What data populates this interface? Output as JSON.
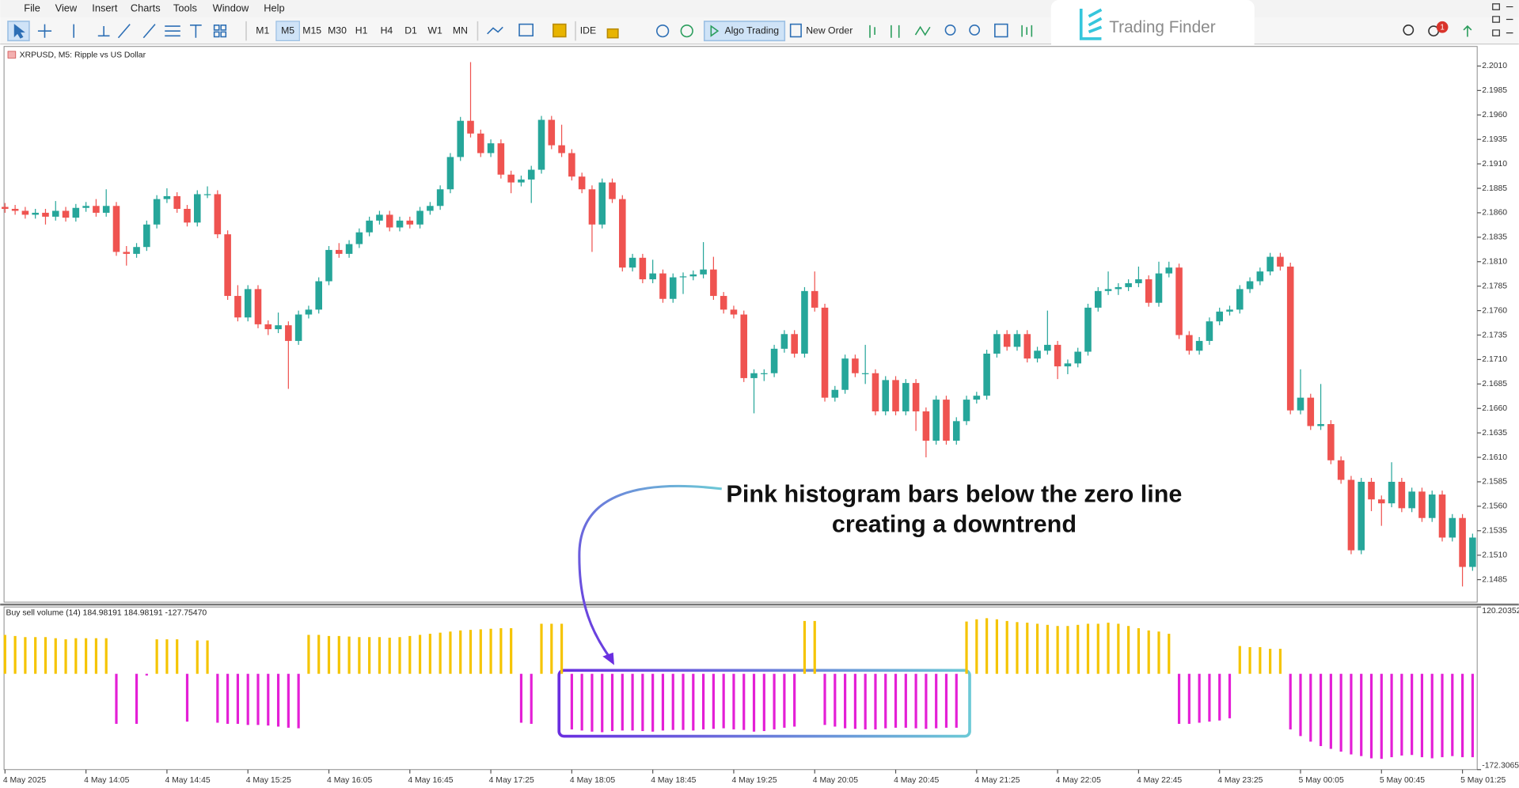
{
  "menu": [
    "File",
    "View",
    "Insert",
    "Charts",
    "Tools",
    "Window",
    "Help"
  ],
  "toolbar": {
    "timeframes": [
      "M1",
      "M5",
      "M15",
      "M30",
      "H1",
      "H4",
      "D1",
      "W1",
      "MN"
    ],
    "ide": "IDE",
    "algo": "Algo Trading",
    "new_order": "New Order"
  },
  "logo": "Trading Finder",
  "notifications": 1,
  "chart_data": [
    {
      "type": "candlestick",
      "title": "XRPUSD, M5:  Ripple vs US Dollar",
      "categories": [
        "4 May 2025",
        null,
        null,
        null,
        null,
        null,
        null,
        null,
        "4 May 14:05",
        null,
        null,
        null,
        null,
        null,
        null,
        null,
        "4 May 14:45",
        null,
        null,
        null,
        null,
        null,
        null,
        null,
        "4 May 15:25",
        null,
        null,
        null,
        null,
        null,
        null,
        null,
        "4 May 16:05",
        null,
        null,
        null,
        null,
        null,
        null,
        null,
        "4 May 16:45",
        null,
        null,
        null,
        null,
        null,
        null,
        null,
        "4 May 17:25",
        null,
        null,
        null,
        null,
        null,
        null,
        null,
        "4 May 18:05",
        null,
        null,
        null,
        null,
        null,
        null,
        null,
        "4 May 18:45",
        null,
        null,
        null,
        null,
        null,
        null,
        null,
        "4 May 19:25",
        null,
        null,
        null,
        null,
        null,
        null,
        null,
        "4 May 20:05",
        null,
        null,
        null,
        null,
        null,
        null,
        null,
        "4 May 20:45",
        null,
        null,
        null,
        null,
        null,
        null,
        null,
        "4 May 21:25",
        null,
        null,
        null,
        null,
        null,
        null,
        null,
        "4 May 22:05",
        null,
        null,
        null,
        null,
        null,
        null,
        null,
        "4 May 22:45",
        null,
        null,
        null,
        null,
        null,
        null,
        null,
        "4 May 23:25",
        null,
        null,
        null,
        null,
        null,
        null,
        null,
        "5 May 00:05",
        null,
        null,
        null,
        null,
        null,
        null,
        null,
        "5 May 00:45",
        null,
        null,
        null,
        null,
        null,
        null,
        null,
        "5 May 01:25",
        null
      ],
      "open": [
        2.1866,
        2.1864,
        2.1862,
        2.1858,
        2.186,
        2.1856,
        2.1862,
        2.1855,
        2.1865,
        2.1867,
        2.186,
        2.1867,
        2.182,
        2.1818,
        2.1825,
        2.1848,
        2.1874,
        2.1877,
        2.1864,
        2.185,
        2.1879,
        2.1879,
        2.1838,
        2.1775,
        2.1753,
        2.1782,
        2.1746,
        2.1741,
        2.1745,
        2.1729,
        2.1756,
        2.1761,
        2.179,
        2.1822,
        2.1818,
        2.1828,
        2.184,
        2.1852,
        2.1858,
        2.1845,
        2.1852,
        2.1848,
        2.1862,
        2.1867,
        2.1884,
        2.1917,
        2.1954,
        2.1941,
        2.1921,
        2.1931,
        2.1899,
        2.1891,
        2.1894,
        2.1904,
        2.1955,
        2.1929,
        2.1921,
        2.1897,
        2.1884,
        2.1848,
        2.1891,
        2.1874,
        2.1804,
        2.1814,
        2.1792,
        2.1798,
        2.1772,
        2.1794,
        2.1795,
        2.1797,
        2.1802,
        2.1775,
        2.1761,
        2.1756,
        2.1691,
        2.1696,
        2.1696,
        2.1721,
        2.1736,
        2.1716,
        2.178,
        2.1763,
        2.1671,
        2.1679,
        2.1711,
        2.1696,
        2.1696,
        2.1657,
        2.1689,
        2.1657,
        2.1686,
        2.1657,
        2.1627,
        2.1669,
        2.1627,
        2.1647,
        2.1669,
        2.1673,
        2.1716,
        2.1736,
        2.1723,
        2.1736,
        2.1711,
        2.1719,
        2.1725,
        2.1703,
        2.1706,
        2.1718,
        2.1763,
        2.178,
        2.1782,
        2.1784,
        2.1788,
        2.1792,
        2.1768,
        2.1798,
        2.1804,
        2.1735,
        2.1719,
        2.1729,
        2.1749,
        2.1759,
        2.1761,
        2.1782,
        2.179,
        2.18,
        2.1815,
        2.1805,
        2.1658,
        2.1671,
        2.1642,
        2.1644,
        2.1607,
        2.1587,
        2.1515,
        2.1585,
        2.1567,
        2.1563,
        2.1585,
        2.1558,
        2.1575,
        2.1548,
        2.1572,
        2.1528,
        2.1548,
        2.1498
      ],
      "high": [
        2.187,
        2.1868,
        2.1866,
        2.1864,
        2.1864,
        2.1872,
        2.1866,
        2.1869,
        2.1871,
        2.1874,
        2.1884,
        2.1871,
        2.1826,
        2.1829,
        2.1852,
        2.1878,
        2.1885,
        2.1881,
        2.1868,
        2.1883,
        2.1887,
        2.1883,
        2.1842,
        2.1786,
        2.1786,
        2.1786,
        2.175,
        2.1758,
        2.1749,
        2.176,
        2.1765,
        2.1794,
        2.1826,
        2.1829,
        2.1832,
        2.1844,
        2.1856,
        2.1862,
        2.1862,
        2.1856,
        2.1856,
        2.1866,
        2.1871,
        2.1888,
        2.1921,
        2.1958,
        2.2014,
        2.1945,
        2.1935,
        2.1935,
        2.1903,
        2.1898,
        2.1908,
        2.1959,
        2.1959,
        2.195,
        2.1925,
        2.1901,
        2.1888,
        2.1895,
        2.1895,
        2.1878,
        2.1818,
        2.1818,
        2.1812,
        2.1802,
        2.1798,
        2.1799,
        2.1801,
        2.183,
        2.1815,
        2.1779,
        2.1765,
        2.176,
        2.17,
        2.17,
        2.1725,
        2.174,
        2.174,
        2.1784,
        2.18,
        2.1767,
        2.1683,
        2.1715,
        2.1715,
        2.1725,
        2.17,
        2.1693,
        2.1693,
        2.169,
        2.169,
        2.1661,
        2.1673,
        2.1673,
        2.1651,
        2.1673,
        2.1677,
        2.172,
        2.174,
        2.174,
        2.174,
        2.174,
        2.1723,
        2.176,
        2.1729,
        2.171,
        2.1722,
        2.1767,
        2.1784,
        2.18,
        2.1788,
        2.1792,
        2.1805,
        2.1796,
        2.181,
        2.181,
        2.1808,
        2.1739,
        2.1733,
        2.1753,
        2.1763,
        2.1765,
        2.1786,
        2.1794,
        2.1804,
        2.1819,
        2.1819,
        2.1809,
        2.17,
        2.1675,
        2.1685,
        2.1648,
        2.1611,
        2.1591,
        2.1589,
        2.1589,
        2.1571,
        2.1605,
        2.1589,
        2.1579,
        2.1579,
        2.1576,
        2.1576,
        2.1552,
        2.1552,
        2.1532
      ],
      "low": [
        2.186,
        2.1858,
        2.1854,
        2.1854,
        2.1848,
        2.1852,
        2.1851,
        2.1851,
        2.1861,
        2.1856,
        2.1856,
        2.1816,
        2.1806,
        2.1814,
        2.1821,
        2.1844,
        2.187,
        2.186,
        2.1846,
        2.1846,
        2.1875,
        2.1834,
        2.1771,
        2.1749,
        2.1749,
        2.1742,
        2.1735,
        2.1737,
        2.168,
        2.1725,
        2.1752,
        2.1757,
        2.1786,
        2.1814,
        2.1814,
        2.1824,
        2.1836,
        2.1848,
        2.1841,
        2.1841,
        2.1844,
        2.1844,
        2.1858,
        2.1863,
        2.188,
        2.1913,
        2.1937,
        2.1917,
        2.1917,
        2.1895,
        2.188,
        2.1887,
        2.187,
        2.19,
        2.1925,
        2.1917,
        2.1893,
        2.188,
        2.182,
        2.1844,
        2.187,
        2.18,
        2.18,
        2.1788,
        2.1788,
        2.1768,
        2.1768,
        2.1777,
        2.1791,
        2.1793,
        2.1771,
        2.1757,
        2.1752,
        2.1687,
        2.1655,
        2.1688,
        2.1692,
        2.1717,
        2.1712,
        2.1712,
        2.1759,
        2.1667,
        2.1667,
        2.1675,
        2.1692,
        2.1685,
        2.1653,
        2.1653,
        2.1653,
        2.1653,
        2.1637,
        2.161,
        2.1623,
        2.1623,
        2.1623,
        2.1643,
        2.1665,
        2.1669,
        2.1712,
        2.1719,
        2.1719,
        2.1707,
        2.1707,
        2.1715,
        2.169,
        2.1695,
        2.1702,
        2.1714,
        2.1759,
        2.1776,
        2.1776,
        2.178,
        2.1784,
        2.1764,
        2.1764,
        2.1794,
        2.1731,
        2.1715,
        2.1715,
        2.1725,
        2.1745,
        2.1755,
        2.1757,
        2.1778,
        2.1786,
        2.1796,
        2.1801,
        2.1654,
        2.1654,
        2.1638,
        2.1638,
        2.1603,
        2.1583,
        2.1511,
        2.1511,
        2.1555,
        2.154,
        2.1559,
        2.1554,
        2.1554,
        2.1544,
        2.1544,
        2.1524,
        2.1524,
        2.1478,
        2.1494
      ],
      "close": [
        2.1864,
        2.1862,
        2.1858,
        2.186,
        2.1856,
        2.1862,
        2.1855,
        2.1865,
        2.1867,
        2.186,
        2.1867,
        2.182,
        2.1818,
        2.1825,
        2.1848,
        2.1874,
        2.1877,
        2.1864,
        2.185,
        2.1879,
        2.1879,
        2.1838,
        2.1775,
        2.1753,
        2.1782,
        2.1746,
        2.1741,
        2.1745,
        2.1729,
        2.1756,
        2.1761,
        2.179,
        2.1822,
        2.1818,
        2.1828,
        2.184,
        2.1852,
        2.1858,
        2.1845,
        2.1852,
        2.1848,
        2.1862,
        2.1867,
        2.1884,
        2.1917,
        2.1954,
        2.1941,
        2.1921,
        2.1931,
        2.1899,
        2.1891,
        2.1894,
        2.1904,
        2.1955,
        2.1929,
        2.1921,
        2.1897,
        2.1884,
        2.1848,
        2.1891,
        2.1874,
        2.1804,
        2.1814,
        2.1792,
        2.1798,
        2.1772,
        2.1794,
        2.1795,
        2.1797,
        2.1802,
        2.1775,
        2.1761,
        2.1756,
        2.1691,
        2.1696,
        2.1696,
        2.1721,
        2.1736,
        2.1716,
        2.178,
        2.1763,
        2.1671,
        2.1679,
        2.1711,
        2.1696,
        2.1696,
        2.1657,
        2.1689,
        2.1657,
        2.1686,
        2.1657,
        2.1627,
        2.1669,
        2.1627,
        2.1647,
        2.1669,
        2.1673,
        2.1716,
        2.1736,
        2.1723,
        2.1736,
        2.1711,
        2.1719,
        2.1725,
        2.1703,
        2.1706,
        2.1718,
        2.1763,
        2.178,
        2.1782,
        2.1784,
        2.1788,
        2.1792,
        2.1768,
        2.1798,
        2.1804,
        2.1735,
        2.1719,
        2.1729,
        2.1749,
        2.1759,
        2.1761,
        2.1782,
        2.179,
        2.18,
        2.1815,
        2.1805,
        2.1658,
        2.1671,
        2.1642,
        2.1644,
        2.1607,
        2.1587,
        2.1515,
        2.1585,
        2.1567,
        2.1563,
        2.1585,
        2.1558,
        2.1575,
        2.1548,
        2.1572,
        2.1528,
        2.1548,
        2.1498,
        2.1528
      ],
      "color_up": "#26a69a",
      "color_down": "#ef5350",
      "ylim": [
        2.1462,
        2.203
      ],
      "yticks": [
        {
          "value": 2.201,
          "label": "2.2010"
        },
        2.1985,
        {
          "value": 2.196,
          "label": "2.1960"
        },
        2.1935,
        {
          "value": 2.191,
          "label": "2.1910"
        },
        2.1885,
        {
          "value": 2.186,
          "label": "2.1860"
        },
        2.1835,
        {
          "value": 2.181,
          "label": "2.1810"
        },
        2.1785,
        {
          "value": 2.176,
          "label": "2.1760"
        },
        2.1735,
        {
          "value": 2.171,
          "label": "2.1710"
        },
        2.1685,
        {
          "value": 2.166,
          "label": "2.1660"
        },
        2.1635,
        {
          "value": 2.161,
          "label": "2.1610"
        },
        2.1585,
        {
          "value": 2.156,
          "label": "2.1560"
        },
        2.1535,
        {
          "value": 2.151,
          "label": "2.1510"
        },
        2.1485
      ],
      "grid": false,
      "annotation": [
        "Pink histogram bars below the zero line",
        "creating a downtrend"
      ]
    },
    {
      "type": "bar",
      "title": "Buy sell volume (14) 184.98191 184.98191 -127.75470",
      "values": [
        70,
        68,
        66,
        66,
        66,
        64,
        62,
        64,
        64,
        64,
        64,
        -90,
        0,
        -90,
        -3,
        62,
        62,
        62,
        -86,
        60,
        60,
        -88,
        -90,
        -90,
        -92,
        -92,
        -93,
        -95,
        -97,
        -98,
        70,
        70,
        68,
        68,
        67,
        66,
        66,
        66,
        65,
        66,
        68,
        70,
        72,
        74,
        76,
        78,
        79,
        80,
        81,
        82,
        82,
        -88,
        -90,
        90,
        90,
        90,
        -100,
        -102,
        -104,
        -105,
        -103,
        -102,
        -102,
        -103,
        -104,
        -102,
        -101,
        -101,
        -102,
        -100,
        -99,
        -98,
        -100,
        -101,
        -104,
        -103,
        -100,
        -97,
        -95,
        95,
        95,
        -92,
        -95,
        -98,
        -99,
        -100,
        -100,
        -98,
        -97,
        -97,
        -98,
        -99,
        -98,
        -97,
        -97,
        94,
        98,
        100,
        98,
        95,
        93,
        92,
        90,
        88,
        86,
        86,
        88,
        90,
        90,
        92,
        90,
        86,
        82,
        78,
        76,
        72,
        -90,
        -90,
        -88,
        -86,
        -84,
        -80,
        50,
        48,
        48,
        45,
        45,
        -100,
        -112,
        -122,
        -130,
        -135,
        -140,
        -145,
        -148,
        -152,
        -153,
        -150,
        -147,
        -146,
        -150,
        -152,
        -150,
        -148,
        -150,
        -150
      ],
      "color_up": "#f5c400",
      "color_down": "#e41fd6",
      "ylim": [
        -172.3065,
        120.20352
      ],
      "yticks": [
        -172.3065,
        120.20352
      ],
      "grid": false
    }
  ]
}
